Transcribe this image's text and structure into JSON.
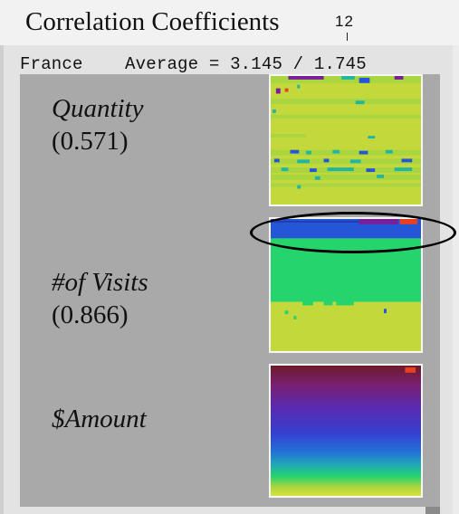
{
  "window": {
    "title": "Correlation Coefficients",
    "tick_label": "12"
  },
  "header": {
    "country": "France",
    "average_text": "Average = 3.145 / 1.745"
  },
  "panels": [
    {
      "name": "Quantity",
      "coefficient": "(0.571)",
      "colormap": "low-dominant"
    },
    {
      "name": "#of Visits",
      "coefficient": "(0.866)",
      "colormap": "two-band"
    },
    {
      "name": "$Amount",
      "coefficient": "",
      "colormap": "gradient"
    }
  ],
  "colors": {
    "yellow": "#c3d83a",
    "lime": "#a8d540",
    "green": "#25d46c",
    "teal": "#1fb6a4",
    "blue": "#2556d8",
    "purple": "#7a1f9a",
    "red": "#e8411f",
    "maroon": "#6b1a2a"
  }
}
